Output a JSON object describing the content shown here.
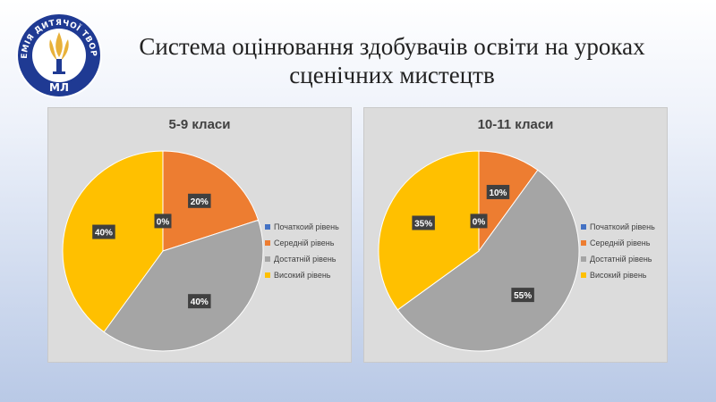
{
  "header": {
    "title_line1": "Система оцінювання здобувачів освіти на уроках",
    "title_line2": "сценічних мистецтв",
    "logo_text": "АКАДЕМІЯ ДИТЯЧОЇ ТВОРЧОСТІ",
    "logo_monogram": "МЛ"
  },
  "colors": {
    "initial": "#4472c4",
    "medium": "#ed7d31",
    "sufficient": "#a5a5a5",
    "high": "#ffc000",
    "logo_blue": "#1f3a93",
    "logo_gold": "#e8b13a"
  },
  "chart_data": [
    {
      "type": "pie",
      "title": "5-9 класи",
      "categories": [
        "Початкоий рівень",
        "Середній рівень",
        "Достатній рівень",
        "Високий рівень"
      ],
      "values": [
        0,
        20,
        40,
        40
      ],
      "labels": [
        "0%",
        "20%",
        "40%",
        "40%"
      ],
      "legend_position": "right"
    },
    {
      "type": "pie",
      "title": "10-11 класи",
      "categories": [
        "Початкоий рівень",
        "Середній рівень",
        "Достатній рівень",
        "Високий рівень"
      ],
      "values": [
        0,
        10,
        55,
        35
      ],
      "labels": [
        "0%",
        "10%",
        "55%",
        "35%"
      ],
      "legend_position": "right"
    }
  ]
}
